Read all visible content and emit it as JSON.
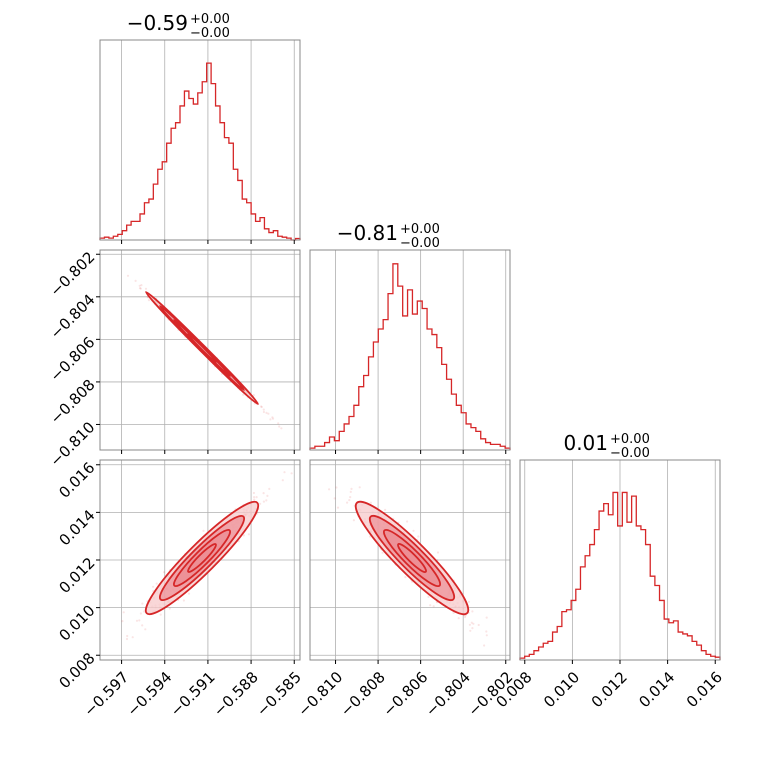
{
  "colors": {
    "series": "#d62728",
    "fill_light": "#f7c9cb",
    "fill_mid": "#ec8f95",
    "grid": "#b0b0b0",
    "frame": "#888888"
  },
  "chart_data": {
    "type": "corner",
    "parameters": [
      {
        "index": 0,
        "range": [
          -0.5985,
          -0.5846
        ],
        "ticks": [
          "−0.597",
          "−0.594",
          "−0.591",
          "−0.588",
          "−0.585"
        ],
        "tick_values": [
          -0.597,
          -0.594,
          -0.591,
          -0.588,
          -0.585
        ],
        "title": {
          "value": "−0.59",
          "upper": "+0.00",
          "lower": "−0.00"
        },
        "hist": [
          0.01,
          0.015,
          0.01,
          0.02,
          0.03,
          0.05,
          0.08,
          0.1,
          0.1,
          0.14,
          0.2,
          0.22,
          0.3,
          0.38,
          0.42,
          0.52,
          0.6,
          0.63,
          0.72,
          0.8,
          0.76,
          0.73,
          0.79,
          0.85,
          0.95,
          0.84,
          0.72,
          0.63,
          0.55,
          0.52,
          0.38,
          0.32,
          0.22,
          0.2,
          0.14,
          0.1,
          0.12,
          0.06,
          0.04,
          0.05,
          0.02,
          0.015,
          0.01,
          0.0,
          0.008
        ]
      },
      {
        "index": 1,
        "range": [
          -0.8112,
          -0.8018
        ],
        "ticks": [
          "−0.810",
          "−0.808",
          "−0.806",
          "−0.804",
          "−0.802"
        ],
        "tick_values": [
          -0.81,
          -0.808,
          -0.806,
          -0.804,
          -0.802
        ],
        "title": {
          "value": "−0.81",
          "upper": "+0.00",
          "lower": "−0.00"
        },
        "hist": [
          0.01,
          0.02,
          0.02,
          0.04,
          0.07,
          0.05,
          0.1,
          0.14,
          0.18,
          0.24,
          0.34,
          0.4,
          0.5,
          0.58,
          0.65,
          0.7,
          0.84,
          1.0,
          0.88,
          0.72,
          0.86,
          0.73,
          0.8,
          0.76,
          0.65,
          0.62,
          0.55,
          0.46,
          0.38,
          0.3,
          0.24,
          0.2,
          0.14,
          0.12,
          0.1,
          0.06,
          0.04,
          0.03,
          0.03,
          0.02,
          0.01
        ]
      },
      {
        "index": 2,
        "range": [
          0.0078,
          0.0162
        ],
        "ticks": [
          "0.008",
          "0.010",
          "0.012",
          "0.014",
          "0.016"
        ],
        "tick_values": [
          0.008,
          0.01,
          0.012,
          0.014,
          0.016
        ],
        "title": {
          "value": "0.01",
          "upper": "+0.00",
          "lower": "−0.00"
        },
        "hist": [
          0.01,
          0.02,
          0.03,
          0.05,
          0.07,
          0.09,
          0.1,
          0.15,
          0.18,
          0.26,
          0.27,
          0.32,
          0.38,
          0.5,
          0.56,
          0.62,
          0.7,
          0.8,
          0.84,
          0.78,
          0.9,
          0.72,
          0.9,
          0.74,
          0.88,
          0.72,
          0.7,
          0.62,
          0.45,
          0.4,
          0.32,
          0.22,
          0.2,
          0.21,
          0.15,
          0.14,
          0.13,
          0.1,
          0.08,
          0.05,
          0.03,
          0.02,
          0.015
        ]
      }
    ],
    "scatter_pairs": [
      {
        "x_param": 0,
        "y_param": 1,
        "correlation": -0.998,
        "contour_width": 0.06
      },
      {
        "x_param": 0,
        "y_param": 2,
        "correlation": 0.95,
        "contour_width": 0.22
      },
      {
        "x_param": 1,
        "y_param": 2,
        "correlation": -0.94,
        "contour_width": 0.24
      }
    ],
    "grid": true
  }
}
